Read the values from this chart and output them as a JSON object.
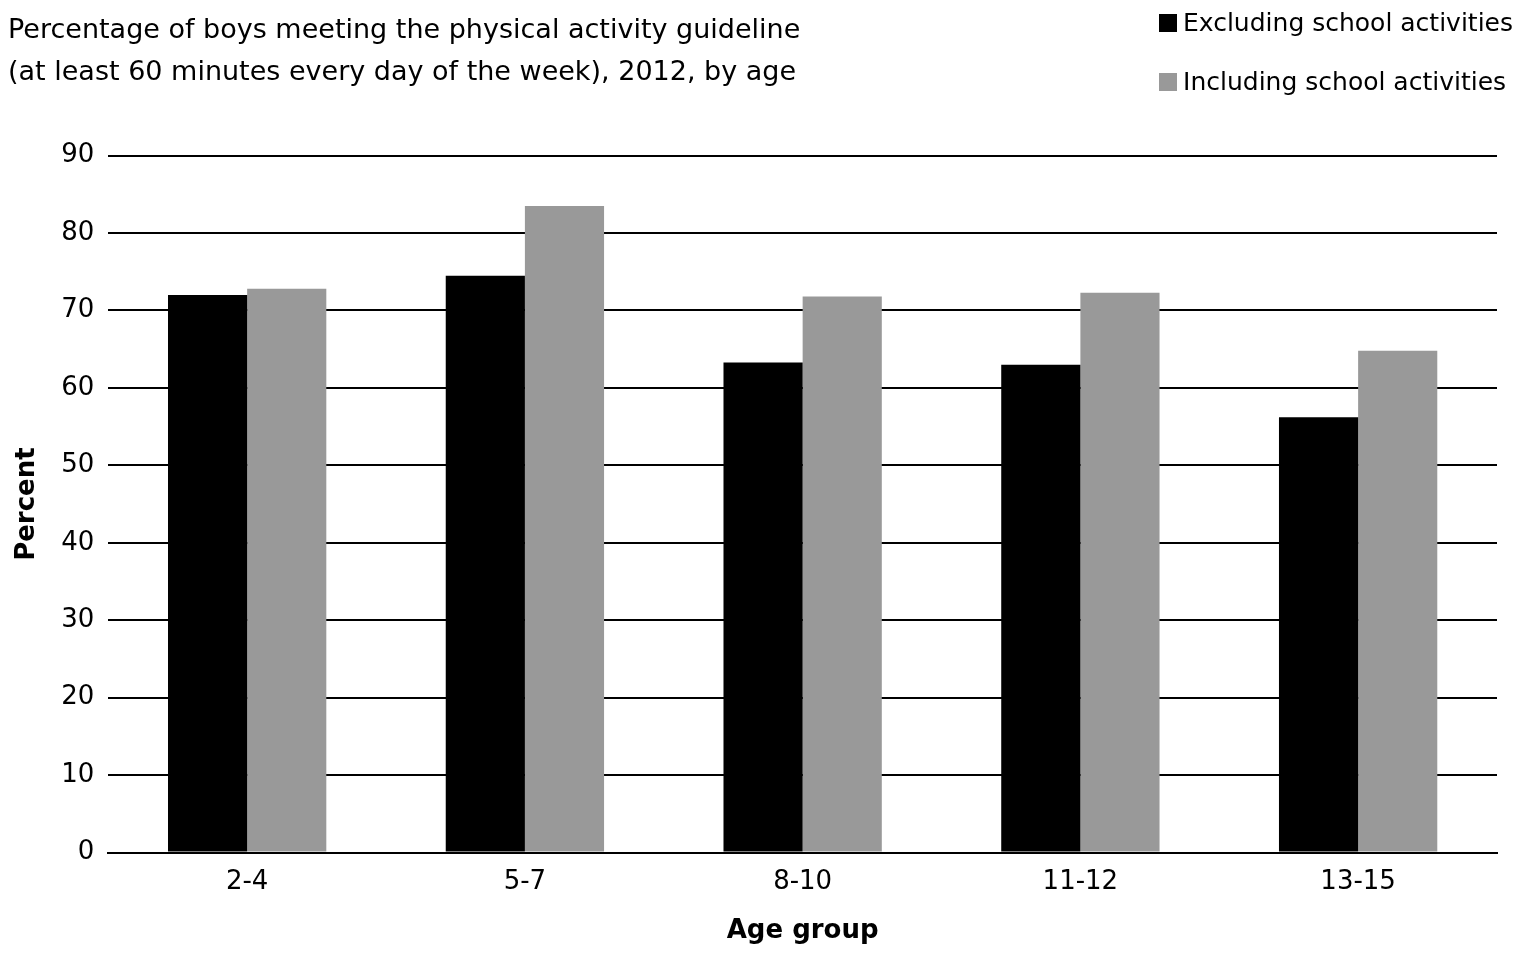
{
  "chart_data": {
    "type": "bar",
    "title": "Percentage of boys meeting the physical activity guideline\n(at least 60 minutes every day of the week), 2012, by age",
    "xlabel": "Age group",
    "ylabel": "Percent",
    "categories": [
      "2-4",
      "5-7",
      "8-10",
      "11-12",
      "13-15"
    ],
    "series": [
      {
        "name": "Excluding school activities",
        "color": "#000000",
        "values": [
          72,
          74.5,
          63.3,
          63,
          56.2
        ]
      },
      {
        "name": "Including school activities",
        "color": "#999999",
        "values": [
          72.8,
          83.5,
          71.8,
          72.3,
          64.8
        ]
      }
    ],
    "ylim": [
      0,
      90
    ],
    "yticks": [
      0,
      10,
      20,
      30,
      40,
      50,
      60,
      70,
      80,
      90
    ],
    "grid": "y",
    "legend": "top right"
  }
}
